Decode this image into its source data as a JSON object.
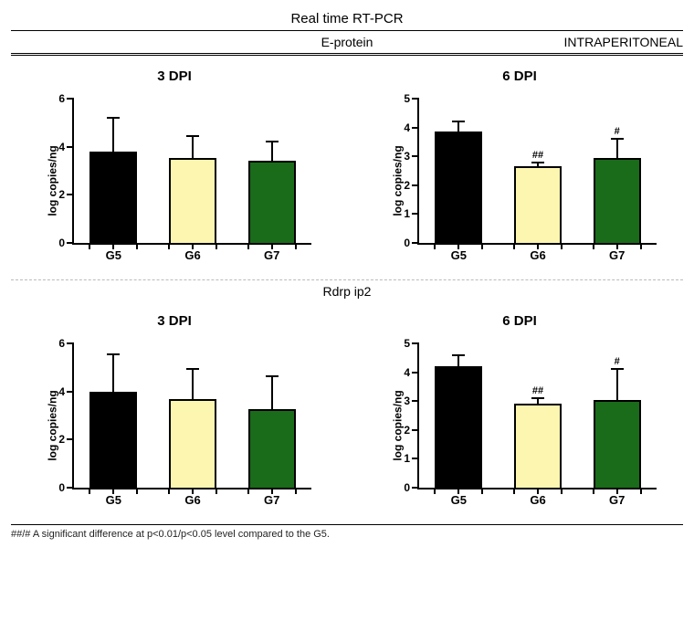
{
  "header": {
    "title": "Real time RT-PCR",
    "sub_center": "E-protein",
    "sub_right": "INTRAPERITONEAL"
  },
  "sections": [
    {
      "label": null,
      "panels": [
        {
          "title": "3 DPI",
          "ylabel": "log copies/ng",
          "ymin": 0,
          "ymax": 6,
          "ystep": 2,
          "bar_width": 0.6,
          "categories": [
            "G5",
            "G6",
            "G7"
          ],
          "values": [
            3.8,
            3.55,
            3.4
          ],
          "errs": [
            1.4,
            0.9,
            0.8
          ],
          "bar_colors": [
            "#000000",
            "#fdf6b0",
            "#1a6b1a"
          ],
          "sig": [
            "",
            "",
            ""
          ]
        },
        {
          "title": "6 DPI",
          "ylabel": "log copies/ng",
          "ymin": 0,
          "ymax": 5,
          "ystep": 1,
          "bar_width": 0.6,
          "categories": [
            "G5",
            "G6",
            "G7"
          ],
          "values": [
            3.85,
            2.65,
            2.95
          ],
          "errs": [
            0.35,
            0.15,
            0.65
          ],
          "bar_colors": [
            "#000000",
            "#fdf6b0",
            "#1a6b1a"
          ],
          "sig": [
            "",
            "##",
            "#"
          ]
        }
      ]
    },
    {
      "label": "Rdrp ip2",
      "panels": [
        {
          "title": "3 DPI",
          "ylabel": "log copies/ng",
          "ymin": 0,
          "ymax": 6,
          "ystep": 2,
          "bar_width": 0.6,
          "categories": [
            "G5",
            "G6",
            "G7"
          ],
          "values": [
            4.0,
            3.7,
            3.25
          ],
          "errs": [
            1.55,
            1.25,
            1.4
          ],
          "bar_colors": [
            "#000000",
            "#fdf6b0",
            "#1a6b1a"
          ],
          "sig": [
            "",
            "",
            ""
          ]
        },
        {
          "title": "6 DPI",
          "ylabel": "log copies/ng",
          "ymin": 0,
          "ymax": 5,
          "ystep": 1,
          "bar_width": 0.6,
          "categories": [
            "G5",
            "G6",
            "G7"
          ],
          "values": [
            4.2,
            2.9,
            3.05
          ],
          "errs": [
            0.4,
            0.2,
            1.05
          ],
          "bar_colors": [
            "#000000",
            "#fdf6b0",
            "#1a6b1a"
          ],
          "sig": [
            "",
            "##",
            "#"
          ]
        }
      ]
    }
  ],
  "footer": "##/# A significant difference at p<0.01/p<0.05 level compared to the G5.",
  "style": {
    "label_fontsize": 12,
    "title_fontsize": 15,
    "axis_color": "#000000",
    "background": "#ffffff"
  }
}
